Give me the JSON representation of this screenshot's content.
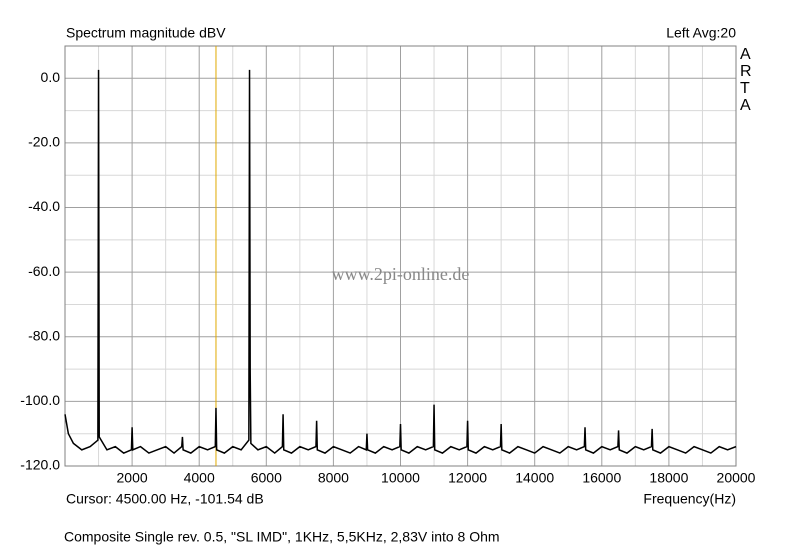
{
  "chart_data": {
    "type": "line",
    "title": "Spectrum magnitude dBV",
    "channel_info": "Left  Avg:20",
    "brand": "ARTA",
    "watermark": "www.2pi-online.de",
    "xlabel": "Frequency(Hz)",
    "cursor_label": "Cursor: 4500.00 Hz, -101.54 dB",
    "cursor_x": 4500,
    "cursor_color": "#e0a800",
    "footer": "Composite Single rev. 0.5, \"SL IMD\", 1KHz, 5,5KHz, 2,83V into 8 Ohm",
    "color": "#000000",
    "grid": true,
    "xlim": [
      0,
      20000
    ],
    "ylim": [
      -120,
      10
    ],
    "xticks": [
      2000,
      4000,
      6000,
      8000,
      10000,
      12000,
      14000,
      16000,
      18000,
      20000
    ],
    "minor_xticks": [
      1000,
      3000,
      5000,
      7000,
      9000,
      11000,
      13000,
      15000,
      17000,
      19000
    ],
    "yticks": [
      {
        "value": 0,
        "label": "0.0"
      },
      {
        "value": -20,
        "label": "-20.0"
      },
      {
        "value": -40,
        "label": "-40.0"
      },
      {
        "value": -60,
        "label": "-60.0"
      },
      {
        "value": -80,
        "label": "-80.0"
      },
      {
        "value": -100,
        "label": "-100.0"
      },
      {
        "value": -120,
        "label": "-120.0"
      }
    ],
    "minor_yticks": [
      10,
      -10,
      -30,
      -50,
      -70,
      -90,
      -110
    ],
    "x": [
      0,
      100,
      250,
      500,
      750,
      980,
      1000,
      1020,
      1250,
      1500,
      1750,
      1980,
      2000,
      2020,
      2250,
      2500,
      2750,
      3000,
      3250,
      3480,
      3500,
      3520,
      3750,
      4000,
      4250,
      4480,
      4500,
      4520,
      4750,
      5000,
      5250,
      5480,
      5500,
      5520,
      5540,
      5750,
      6000,
      6250,
      6480,
      6500,
      6520,
      6750,
      7000,
      7250,
      7480,
      7500,
      7520,
      7750,
      8000,
      8250,
      8500,
      8750,
      8980,
      9000,
      9020,
      9250,
      9500,
      9750,
      9980,
      10000,
      10020,
      10250,
      10500,
      10750,
      10980,
      11000,
      11020,
      11250,
      11500,
      11750,
      11980,
      12000,
      12020,
      12250,
      12500,
      12750,
      12980,
      13000,
      13020,
      13250,
      13500,
      13750,
      14000,
      14250,
      14500,
      14750,
      15000,
      15250,
      15480,
      15500,
      15520,
      15750,
      16000,
      16250,
      16480,
      16500,
      16520,
      16750,
      17000,
      17250,
      17480,
      17500,
      17520,
      17750,
      18000,
      18250,
      18500,
      18750,
      19000,
      19250,
      19500,
      19750,
      20000
    ],
    "values": [
      -104,
      -110,
      -113,
      -115,
      -114,
      -112,
      2.6,
      -111,
      -115,
      -114,
      -116,
      -115,
      -108,
      -115,
      -114,
      -116,
      -115,
      -114,
      -116,
      -114,
      -111,
      -115,
      -116,
      -114,
      -115,
      -114,
      -102,
      -115,
      -116,
      -114,
      -115,
      -112,
      2.6,
      -91,
      -113,
      -115,
      -114,
      -116,
      -114,
      -104,
      -115,
      -116,
      -114,
      -115,
      -114,
      -106,
      -115,
      -116,
      -114,
      -115,
      -116,
      -114,
      -115,
      -110,
      -115,
      -116,
      -114,
      -115,
      -114,
      -107,
      -115,
      -116,
      -114,
      -115,
      -114,
      -101,
      -115,
      -116,
      -114,
      -115,
      -114,
      -106,
      -115,
      -116,
      -114,
      -115,
      -114,
      -107,
      -115,
      -116,
      -114,
      -115,
      -116,
      -114,
      -115,
      -116,
      -114,
      -115,
      -114,
      -108,
      -115,
      -116,
      -114,
      -115,
      -114,
      -109,
      -115,
      -116,
      -114,
      -115,
      -114,
      -108.5,
      -115,
      -116,
      -114,
      -115,
      -116,
      -114,
      -115,
      -116,
      -114,
      -115,
      -114
    ]
  }
}
